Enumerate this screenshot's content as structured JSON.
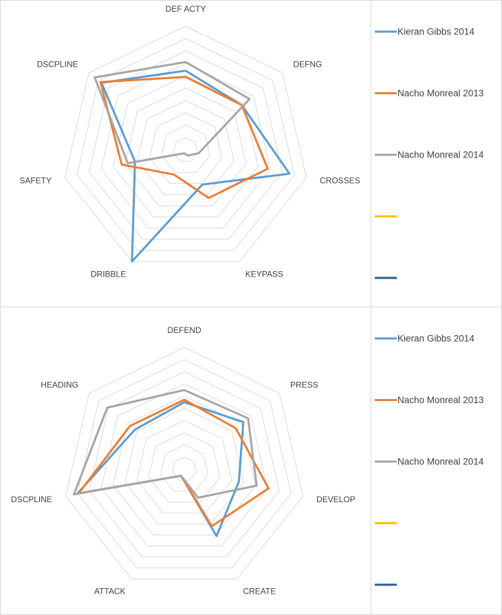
{
  "chart_data": [
    {
      "type": "radar",
      "title": "",
      "axes": [
        "DEF ACTY",
        "DEFNG",
        "CROSSES",
        "KEYPASS",
        "DRIBBLE",
        "SAFETY",
        "DSCPLINE"
      ],
      "rlim": [
        0,
        10
      ],
      "grid": true,
      "legend_position": "right",
      "series": [
        {
          "name": "Kieran Gibbs 2014",
          "color": "#5b9bd5",
          "values": [
            6.4,
            5.8,
            8.6,
            3.1,
            10.0,
            4.2,
            8.7
          ]
        },
        {
          "name": "Nacho Monreal 2013",
          "color": "#ed7d31",
          "values": [
            5.9,
            5.8,
            6.8,
            4.3,
            2.2,
            5.3,
            8.8
          ]
        },
        {
          "name": "Nacho Monreal 2014",
          "color": "#a5a5a5",
          "values": [
            7.1,
            6.6,
            1.1,
            0.5,
            0.3,
            4.8,
            9.4
          ]
        },
        {
          "name": "",
          "color": "#ffc000",
          "values": []
        },
        {
          "name": "",
          "color": "#255e91",
          "values": []
        }
      ]
    },
    {
      "type": "radar",
      "title": "",
      "axes": [
        "DEFEND",
        "PRESS",
        "DEVELOP",
        "CREATE",
        "ATTACK",
        "DSCPLINE",
        "HEADING"
      ],
      "rlim": [
        0,
        10
      ],
      "grid": true,
      "legend_position": "right",
      "series": [
        {
          "name": "Kieran Gibbs 2014",
          "color": "#5b9bd5",
          "values": [
            5.5,
            6.2,
            4.6,
            6.1,
            0.6,
            9.0,
            5.2
          ]
        },
        {
          "name": "Nacho Monreal 2013",
          "color": "#ed7d31",
          "values": [
            5.7,
            5.4,
            7.1,
            5.2,
            0.6,
            8.9,
            5.7
          ]
        },
        {
          "name": "Nacho Monreal 2014",
          "color": "#a5a5a5",
          "values": [
            6.5,
            6.7,
            6.1,
            2.6,
            0.6,
            9.3,
            8.1
          ]
        },
        {
          "name": "",
          "color": "#ffc000",
          "values": []
        },
        {
          "name": "",
          "color": "#255e91",
          "values": []
        }
      ]
    }
  ]
}
